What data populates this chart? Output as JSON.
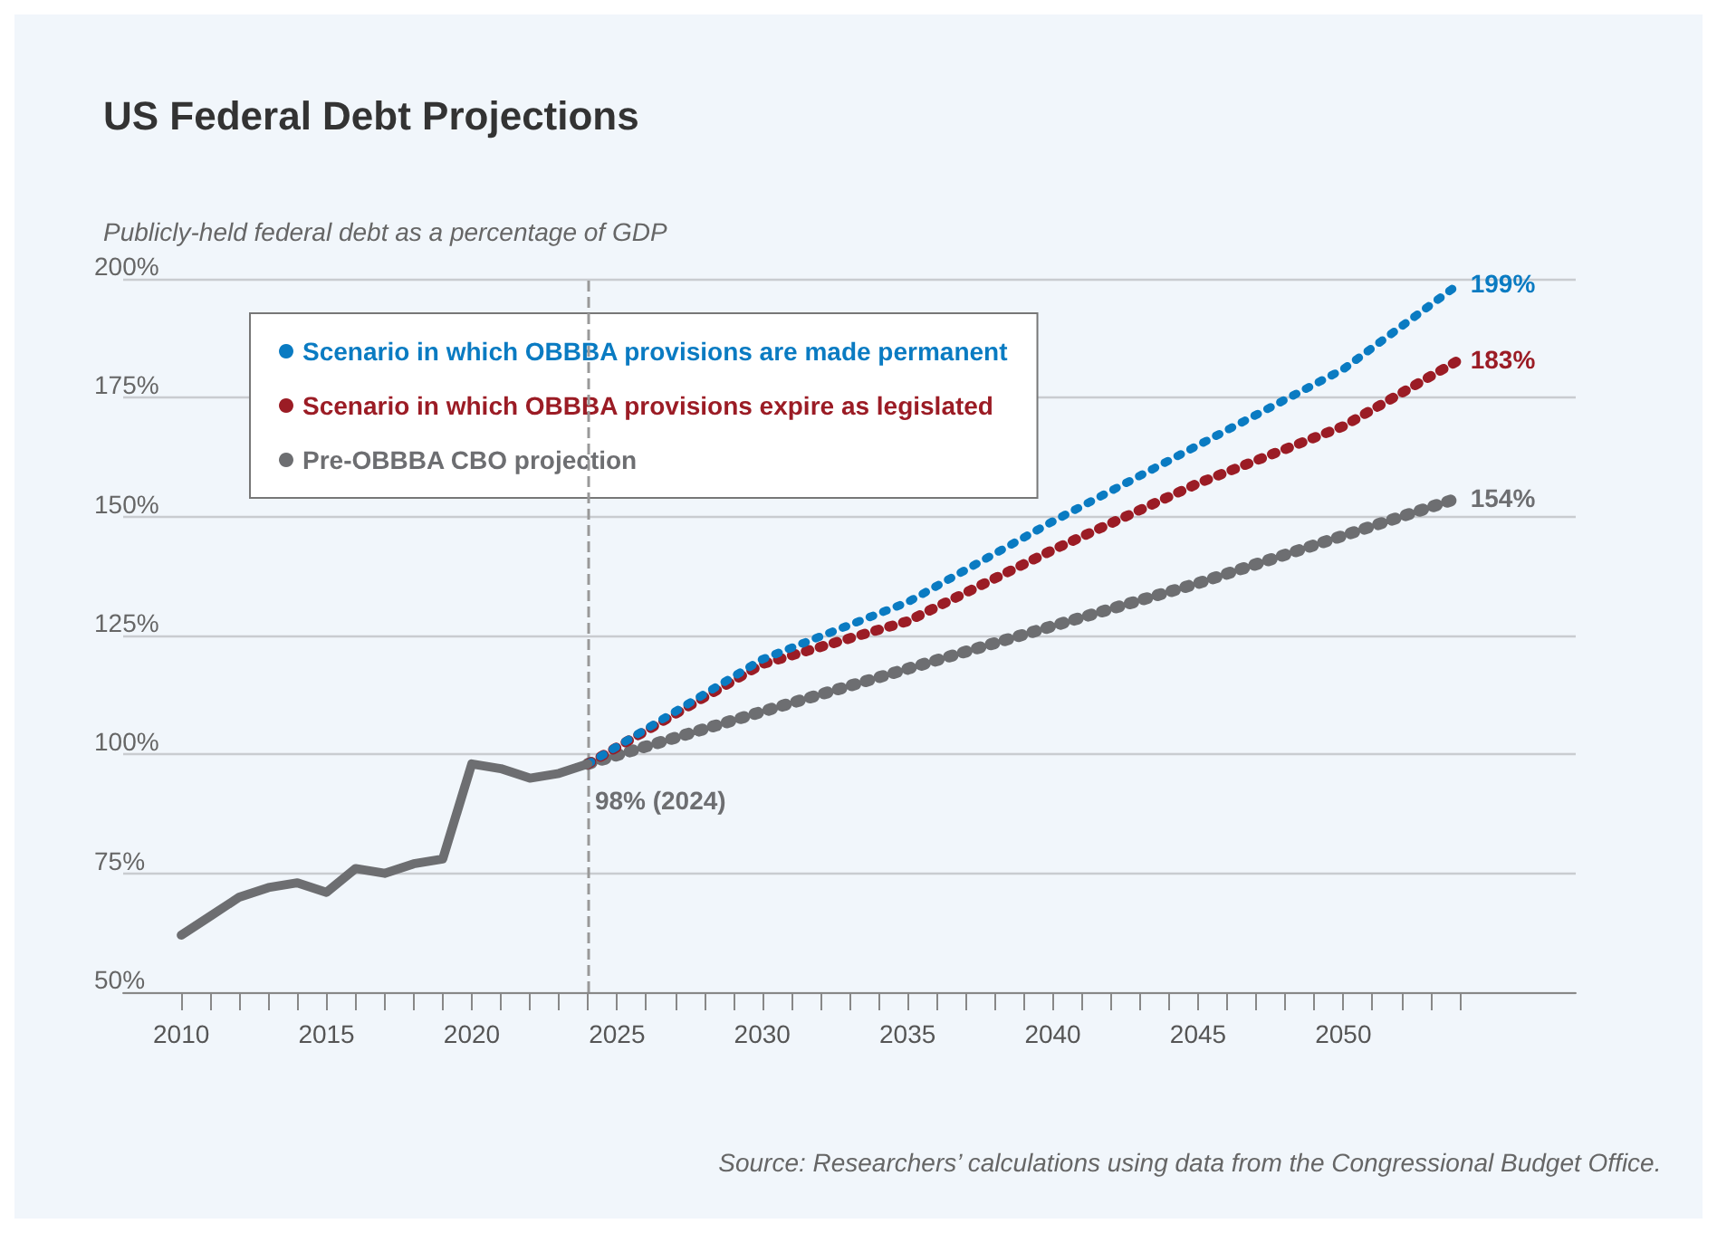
{
  "chart_data": {
    "type": "line",
    "title": "US Federal Debt Projections",
    "ylabel": "Publicly-held federal debt as a percentage of GDP",
    "xlim": [
      2008,
      2058
    ],
    "xticks": [
      2010,
      {
        "value": 2011,
        "label": null
      },
      {
        "value": 2012,
        "label": null
      },
      {
        "value": 2013,
        "label": null
      },
      {
        "value": 2014,
        "label": null
      },
      2015,
      {
        "value": 2016,
        "label": null
      },
      {
        "value": 2017,
        "label": null
      },
      {
        "value": 2018,
        "label": null
      },
      {
        "value": 2019,
        "label": null
      },
      2020,
      {
        "value": 2021,
        "label": null
      },
      {
        "value": 2022,
        "label": null
      },
      {
        "value": 2023,
        "label": null
      },
      {
        "value": 2024,
        "label": null
      },
      2025,
      {
        "value": 2026,
        "label": null
      },
      {
        "value": 2027,
        "label": null
      },
      {
        "value": 2028,
        "label": null
      },
      {
        "value": 2029,
        "label": null
      },
      2030,
      {
        "value": 2031,
        "label": null
      },
      {
        "value": 2032,
        "label": null
      },
      {
        "value": 2033,
        "label": null
      },
      {
        "value": 2034,
        "label": null
      },
      2035,
      {
        "value": 2036,
        "label": null
      },
      {
        "value": 2037,
        "label": null
      },
      {
        "value": 2038,
        "label": null
      },
      {
        "value": 2039,
        "label": null
      },
      2040,
      {
        "value": 2041,
        "label": null
      },
      {
        "value": 2042,
        "label": null
      },
      {
        "value": 2043,
        "label": null
      },
      {
        "value": 2044,
        "label": null
      },
      2045,
      {
        "value": 2046,
        "label": null
      },
      {
        "value": 2047,
        "label": null
      },
      {
        "value": 2048,
        "label": null
      },
      {
        "value": 2049,
        "label": null
      },
      2050,
      {
        "value": 2051,
        "label": null
      },
      {
        "value": 2052,
        "label": null
      },
      {
        "value": 2053,
        "label": null
      },
      {
        "value": 2054,
        "label": null
      }
    ],
    "ylim": [
      50,
      200
    ],
    "yticks": [
      {
        "value": 50,
        "label": "50%"
      },
      {
        "value": 75,
        "label": "75%"
      },
      {
        "value": 100,
        "label": "100%"
      },
      {
        "value": 125,
        "label": "125%"
      },
      {
        "value": 150,
        "label": "150%"
      },
      {
        "value": 175,
        "label": "175%"
      },
      {
        "value": 200,
        "label": "200%"
      }
    ],
    "grid": "y",
    "legend": "top left",
    "marker": "none",
    "series": [
      {
        "color": "#6d6e71",
        "line_style": "solid",
        "x": [
          2010,
          2011,
          2012,
          2013,
          2014,
          2015,
          2016,
          2017,
          2018,
          2019,
          2020,
          2021,
          2022,
          2023,
          2024
        ],
        "values": [
          62,
          66,
          70,
          72,
          73,
          71,
          76,
          75,
          77,
          78,
          98,
          97,
          95,
          96,
          98
        ]
      },
      {
        "name": "Scenario in which OBBBA provisions are made permanent",
        "color": "#0a7bc2",
        "line_style": "dotted",
        "x": [
          2024,
          2030,
          2035,
          2040,
          2045,
          2050,
          2054
        ],
        "values": [
          98,
          120,
          132,
          149,
          165,
          181,
          199
        ],
        "value_labels": [
          null,
          null,
          null,
          null,
          null,
          null,
          "199%"
        ]
      },
      {
        "name": "Scenario in which OBBBA provisions expire as legislated",
        "color": "#9b1c25",
        "line_style": "dotted",
        "x": [
          2024,
          2030,
          2035,
          2040,
          2045,
          2050,
          2054
        ],
        "values": [
          98,
          119,
          128,
          143,
          157,
          169,
          183
        ],
        "value_labels": [
          null,
          null,
          null,
          null,
          null,
          null,
          "183%"
        ]
      },
      {
        "name": "Pre-OBBBA CBO projection",
        "color": "#6d6e71",
        "line_style": "dotted",
        "x": [
          2024,
          2030,
          2035,
          2040,
          2045,
          2050,
          2054
        ],
        "values": [
          98,
          109,
          118,
          127,
          136,
          146,
          154
        ],
        "value_labels": [
          null,
          null,
          null,
          null,
          null,
          null,
          "154%"
        ]
      }
    ],
    "ref_lines": [
      {
        "axis": "x",
        "value": 2024,
        "color": "#999999",
        "line_style": "dashed"
      }
    ],
    "annotations": [
      {
        "text": "98% (2024)",
        "x": 2024,
        "y": 98
      },
      "Source: Researchers’ calculations using data from the Congressional Budget Office."
    ]
  }
}
